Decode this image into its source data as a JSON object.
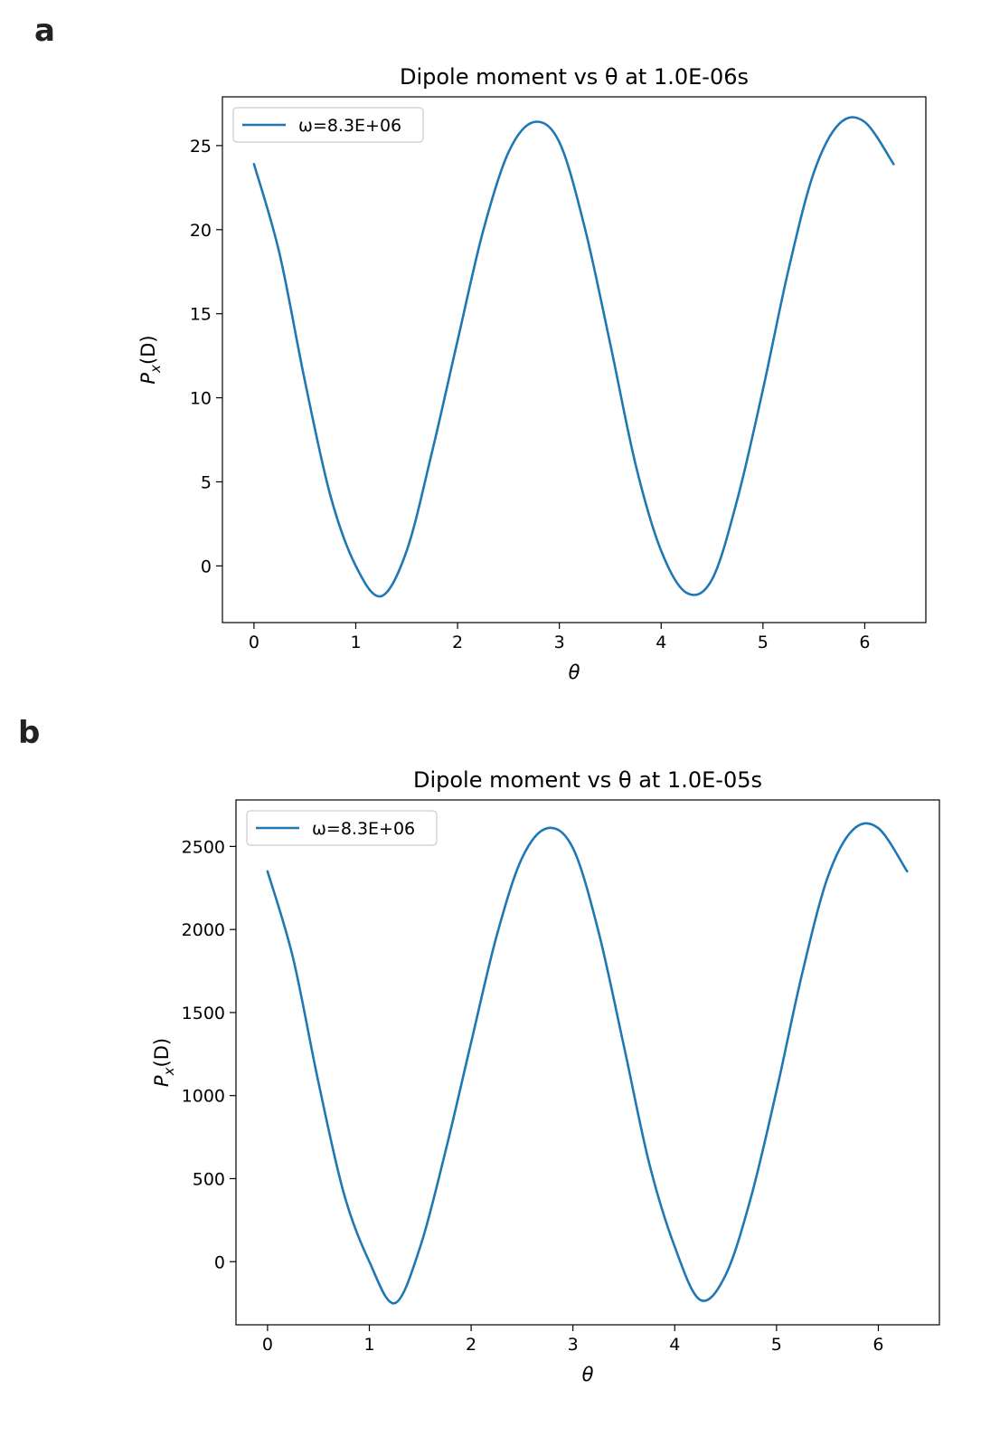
{
  "panels": [
    {
      "letter": "a"
    },
    {
      "letter": "b"
    }
  ],
  "chart_data": [
    {
      "type": "line",
      "title": "Dipole moment vs θ at 1.0E-06s",
      "xlabel": "θ",
      "ylabel": "P_x(D)",
      "ylabel_main": "P",
      "ylabel_sub": "x",
      "ylabel_rest": "(D)",
      "xlim": [
        -0.31,
        6.6
      ],
      "ylim": [
        -3.37,
        27.9
      ],
      "xticks": [
        0,
        1,
        2,
        3,
        4,
        5,
        6
      ],
      "yticks": [
        0,
        5,
        10,
        15,
        20,
        25
      ],
      "legend": "upper left",
      "grid": false,
      "color": "#1f77b4",
      "series": [
        {
          "name": "ω=8.3E+06",
          "x": [
            0.0,
            0.25,
            0.5,
            0.75,
            1.0,
            1.25,
            1.5,
            1.75,
            2.0,
            2.25,
            2.5,
            2.75,
            3.0,
            3.25,
            3.5,
            3.75,
            4.0,
            4.25,
            4.5,
            4.75,
            5.0,
            5.25,
            5.5,
            5.75,
            6.0,
            6.283
          ],
          "y": [
            23.9,
            18.6,
            11.0,
            4.2,
            0.0,
            -1.8,
            0.9,
            6.8,
            13.4,
            19.9,
            24.6,
            26.4,
            25.2,
            20.1,
            13.2,
            6.0,
            0.9,
            -1.6,
            -0.8,
            4.0,
            10.5,
            17.6,
            23.4,
            26.3,
            26.4,
            23.9
          ]
        }
      ]
    },
    {
      "type": "line",
      "title": "Dipole moment vs θ at 1.0E-05s",
      "xlabel": "θ",
      "ylabel": "P_x(D)",
      "ylabel_main": "P",
      "ylabel_sub": "x",
      "ylabel_rest": "(D)",
      "xlim": [
        -0.31,
        6.6
      ],
      "ylim": [
        -380,
        2780
      ],
      "xticks": [
        0,
        1,
        2,
        3,
        4,
        5,
        6
      ],
      "yticks": [
        0,
        500,
        1000,
        1500,
        2000,
        2500
      ],
      "legend": "upper left",
      "grid": false,
      "color": "#1f77b4",
      "series": [
        {
          "name": "ω=8.3E+06",
          "x": [
            0.0,
            0.25,
            0.5,
            0.75,
            1.0,
            1.25,
            1.5,
            1.75,
            2.0,
            2.25,
            2.5,
            2.75,
            3.0,
            3.25,
            3.5,
            3.75,
            4.0,
            4.25,
            4.5,
            4.75,
            5.0,
            5.25,
            5.5,
            5.75,
            6.0,
            6.283
          ],
          "y": [
            2350,
            1830,
            1080,
            410,
            0,
            -250,
            90,
            670,
            1320,
            1960,
            2430,
            2610,
            2490,
            1990,
            1300,
            590,
            90,
            -230,
            -80,
            390,
            1030,
            1730,
            2310,
            2600,
            2610,
            2350
          ]
        }
      ]
    }
  ]
}
